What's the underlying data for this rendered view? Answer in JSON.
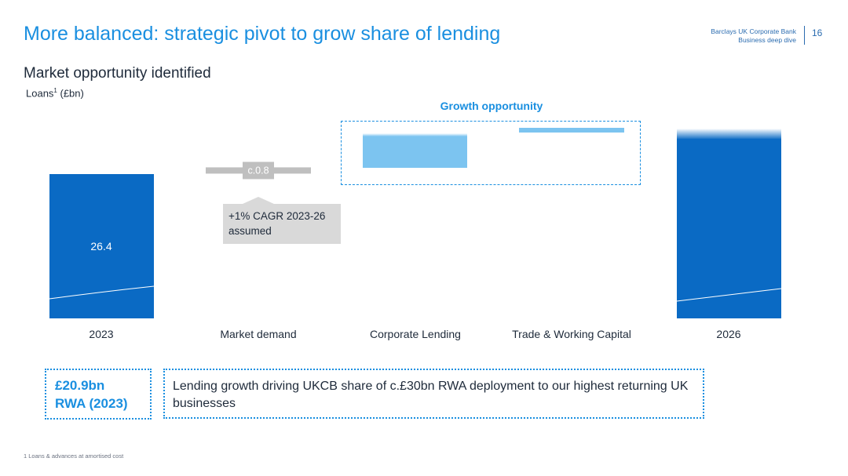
{
  "header": {
    "title": "More balanced: strategic pivot to grow share of lending",
    "bank_line1": "Barclays UK Corporate Bank",
    "bank_line2": "Business deep dive",
    "page_number": "16"
  },
  "section": {
    "subtitle": "Market opportunity identified",
    "unit_label": "Loans",
    "unit_sup": "1",
    "unit_suffix": " (£bn)"
  },
  "chart_data": {
    "type": "bar",
    "subtype": "waterfall",
    "categories": [
      "2023",
      "Market demand",
      "Corporate Lending",
      "Trade & Working Capital",
      "2026"
    ],
    "values": [
      26.4,
      0.8,
      null,
      null,
      null
    ],
    "data_labels": [
      "26.4",
      "c.0.8",
      "",
      "",
      ""
    ],
    "group_label": "Growth opportunity",
    "annotation": "+1% CAGR 2023-26 assumed",
    "colors": {
      "total": "#0a6ac4",
      "growth": "#7cc4f0",
      "demand": "#bfbfbf",
      "accent": "#1a8fe0"
    }
  },
  "callouts": {
    "rwa_line1": "£20.9bn",
    "rwa_line2": "RWA (2023)",
    "message": "Lending growth driving UKCB share of c.£30bn RWA deployment to our highest returning UK businesses"
  },
  "footnote": "1 Loans & advances at amortised cost"
}
